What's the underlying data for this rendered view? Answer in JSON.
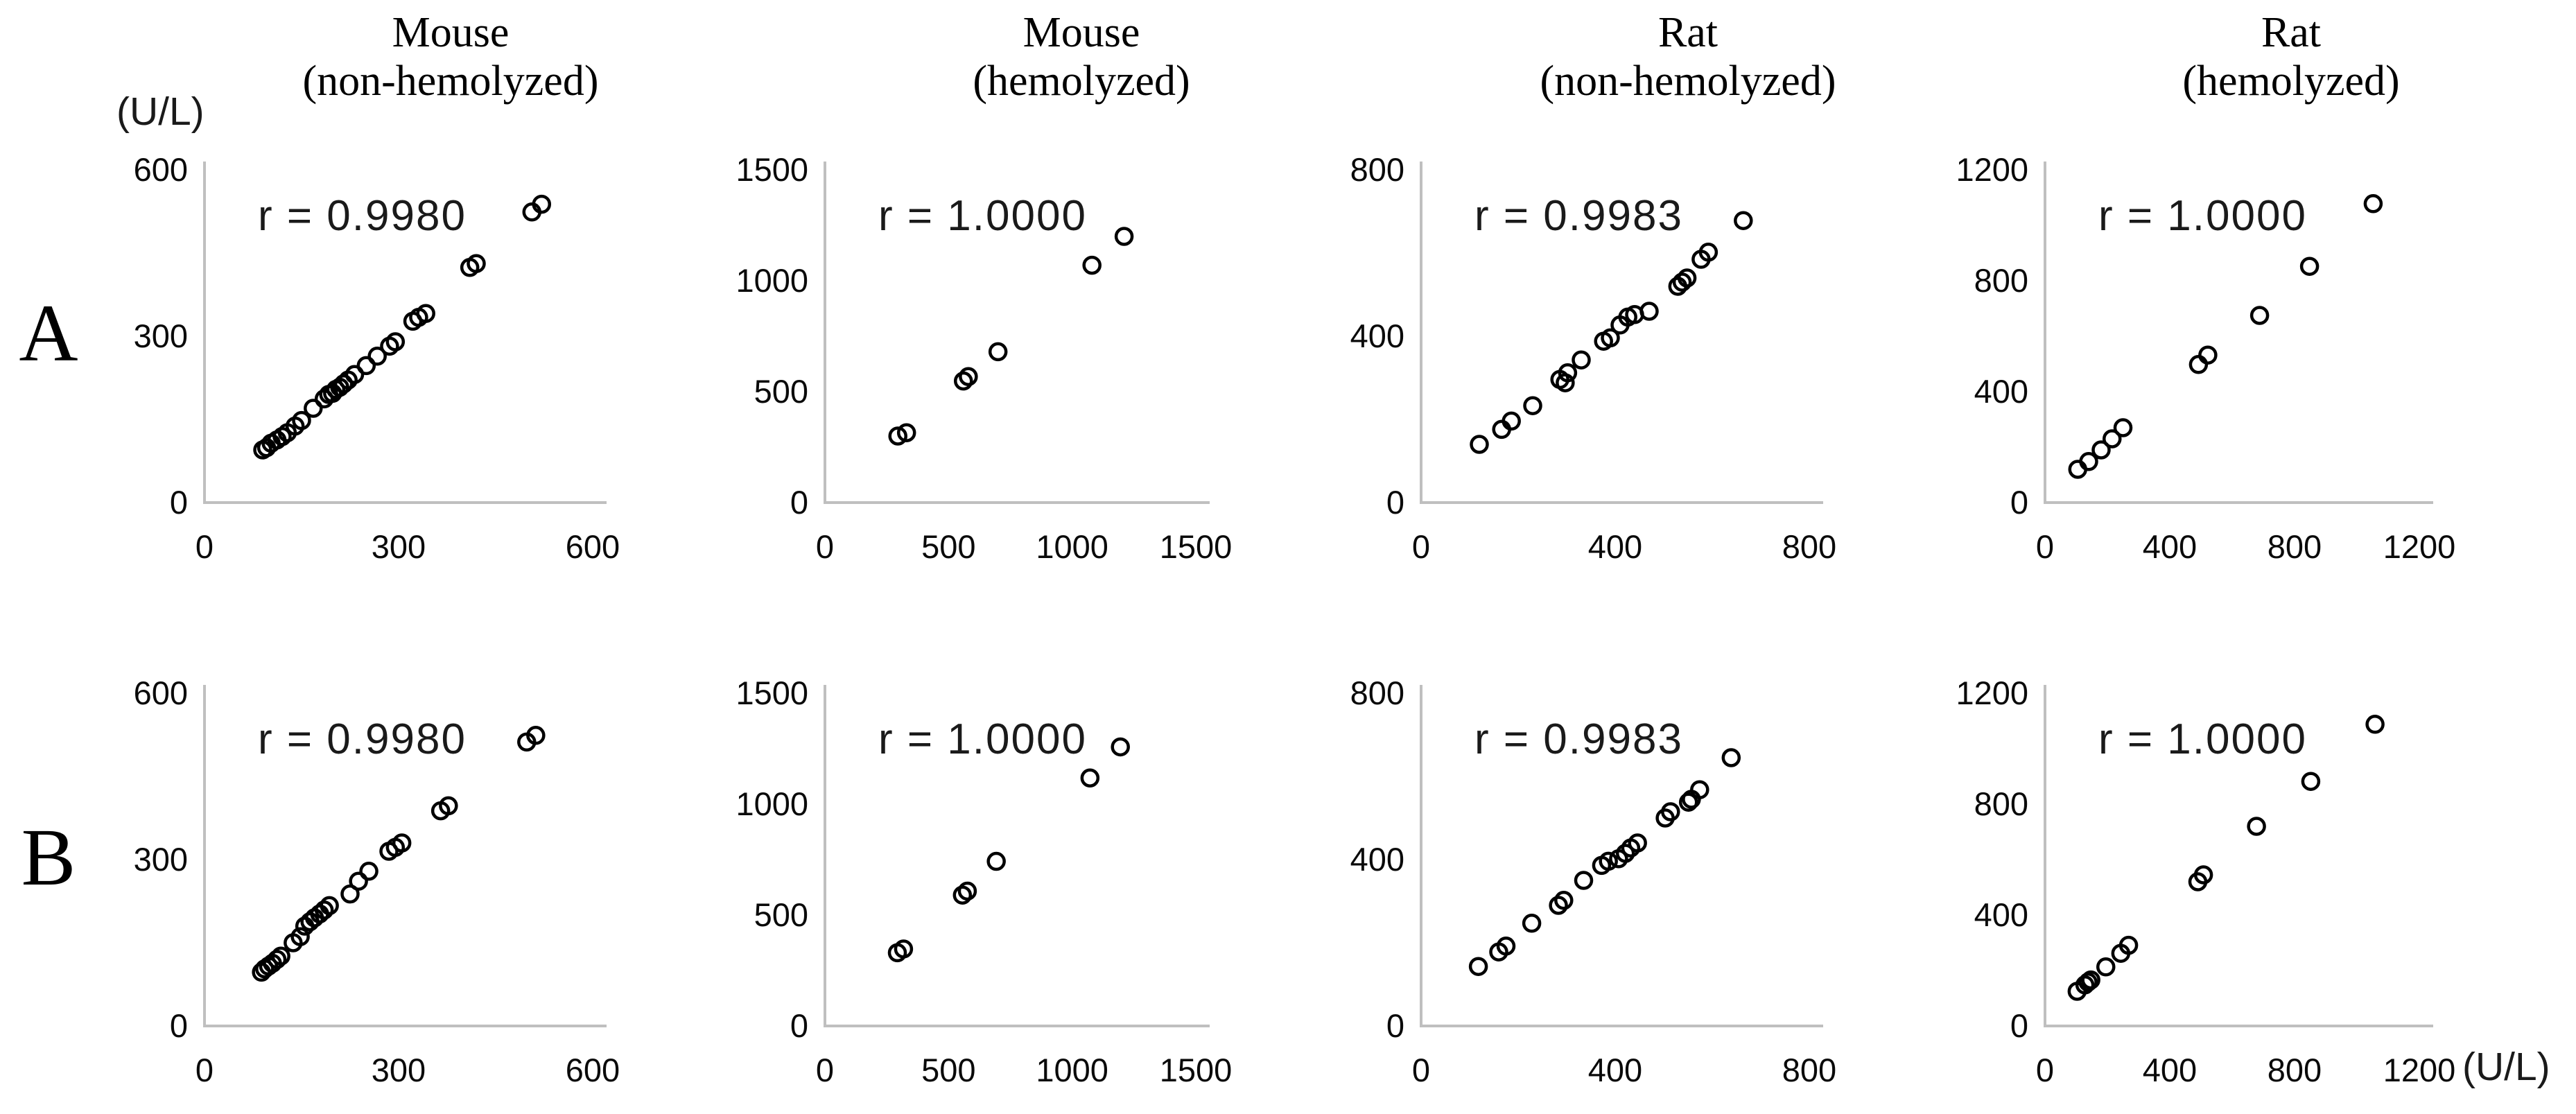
{
  "figure": {
    "row_labels": [
      "A",
      "B"
    ],
    "unit_label_top": "(U/L)",
    "unit_label_bottom": "(U/L)",
    "column_headers": [
      {
        "line1": "Mouse",
        "line2": "(non-hemolyzed)"
      },
      {
        "line1": "Mouse",
        "line2": "(hemolyzed)"
      },
      {
        "line1": "Rat",
        "line2": "(non-hemolyzed)"
      },
      {
        "line1": "Rat",
        "line2": "(hemolyzed)"
      }
    ]
  },
  "colors": {
    "axis": "#bfbfbf",
    "marker": "#000000",
    "text": "#000000",
    "background": "#ffffff"
  },
  "chart_data": [
    {
      "id": "A-mouse-non-hemolyzed",
      "panel": "A",
      "column": "Mouse (non-hemolyzed)",
      "type": "scatter",
      "r_text": "r = 0.9980",
      "r_value": 0.998,
      "xlim": [
        0,
        600
      ],
      "ylim": [
        0,
        600
      ],
      "xticks": [
        0,
        300,
        600
      ],
      "yticks": [
        0,
        300,
        600
      ],
      "grid": false,
      "legend": "none",
      "points": [
        [
          90,
          95
        ],
        [
          96,
          99
        ],
        [
          103,
          107
        ],
        [
          112,
          113
        ],
        [
          120,
          119
        ],
        [
          128,
          126
        ],
        [
          140,
          138
        ],
        [
          150,
          148
        ],
        [
          168,
          170
        ],
        [
          185,
          187
        ],
        [
          192,
          195
        ],
        [
          198,
          197
        ],
        [
          203,
          204
        ],
        [
          209,
          208
        ],
        [
          215,
          214
        ],
        [
          222,
          221
        ],
        [
          232,
          231
        ],
        [
          250,
          247
        ],
        [
          267,
          264
        ],
        [
          286,
          282
        ],
        [
          295,
          290
        ],
        [
          322,
          327
        ],
        [
          331,
          334
        ],
        [
          342,
          341
        ],
        [
          410,
          424
        ],
        [
          420,
          431
        ],
        [
          506,
          524
        ],
        [
          521,
          538
        ]
      ]
    },
    {
      "id": "A-mouse-hemolyzed",
      "panel": "A",
      "column": "Mouse (hemolyzed)",
      "type": "scatter",
      "r_text": "r = 1.0000",
      "r_value": 1.0,
      "xlim": [
        0,
        1500
      ],
      "ylim": [
        0,
        1500
      ],
      "xticks": [
        0,
        500,
        1000,
        1500
      ],
      "yticks": [
        0,
        500,
        1000,
        1500
      ],
      "grid": false,
      "legend": "none",
      "points": [
        [
          295,
          300
        ],
        [
          330,
          315
        ],
        [
          560,
          548
        ],
        [
          580,
          568
        ],
        [
          700,
          680
        ],
        [
          1080,
          1070
        ],
        [
          1210,
          1200
        ]
      ]
    },
    {
      "id": "A-rat-non-hemolyzed",
      "panel": "A",
      "column": "Rat (non-hemolyzed)",
      "type": "scatter",
      "r_text": "r = 0.9983",
      "r_value": 0.9983,
      "xlim": [
        0,
        800
      ],
      "ylim": [
        0,
        800
      ],
      "xticks": [
        0,
        400,
        800
      ],
      "yticks": [
        0,
        400,
        800
      ],
      "grid": false,
      "legend": "none",
      "points": [
        [
          120,
          140
        ],
        [
          166,
          176
        ],
        [
          186,
          196
        ],
        [
          230,
          233
        ],
        [
          286,
          296
        ],
        [
          297,
          288
        ],
        [
          302,
          312
        ],
        [
          330,
          343
        ],
        [
          376,
          388
        ],
        [
          390,
          396
        ],
        [
          410,
          427
        ],
        [
          426,
          446
        ],
        [
          440,
          452
        ],
        [
          470,
          460
        ],
        [
          529,
          520
        ],
        [
          538,
          530
        ],
        [
          548,
          540
        ],
        [
          577,
          585
        ],
        [
          592,
          602
        ],
        [
          664,
          678
        ]
      ]
    },
    {
      "id": "A-rat-hemolyzed",
      "panel": "A",
      "column": "Rat (hemolyzed)",
      "type": "scatter",
      "r_text": "r = 1.0000",
      "r_value": 1.0,
      "xlim": [
        0,
        1200
      ],
      "ylim": [
        0,
        1200
      ],
      "xticks": [
        0,
        400,
        800,
        1200
      ],
      "yticks": [
        0,
        400,
        800,
        1200
      ],
      "grid": false,
      "legend": "none",
      "points": [
        [
          105,
          120
        ],
        [
          140,
          148
        ],
        [
          180,
          190
        ],
        [
          215,
          230
        ],
        [
          250,
          270
        ],
        [
          492,
          498
        ],
        [
          522,
          532
        ],
        [
          688,
          675
        ],
        [
          848,
          852
        ],
        [
          1052,
          1078
        ]
      ]
    },
    {
      "id": "B-mouse-non-hemolyzed",
      "panel": "B",
      "column": "Mouse (non-hemolyzed)",
      "type": "scatter",
      "r_text": "r = 0.9980",
      "r_value": 0.998,
      "xlim": [
        0,
        600
      ],
      "ylim": [
        0,
        600
      ],
      "xticks": [
        0,
        300,
        600
      ],
      "yticks": [
        0,
        300,
        600
      ],
      "grid": false,
      "legend": "none",
      "points": [
        [
          88,
          97
        ],
        [
          93,
          103
        ],
        [
          99,
          108
        ],
        [
          105,
          113
        ],
        [
          112,
          120
        ],
        [
          118,
          126
        ],
        [
          137,
          150
        ],
        [
          148,
          161
        ],
        [
          155,
          180
        ],
        [
          163,
          188
        ],
        [
          170,
          195
        ],
        [
          178,
          202
        ],
        [
          185,
          209
        ],
        [
          193,
          217
        ],
        [
          225,
          238
        ],
        [
          238,
          261
        ],
        [
          254,
          279
        ],
        [
          285,
          315
        ],
        [
          295,
          322
        ],
        [
          305,
          330
        ],
        [
          365,
          388
        ],
        [
          377,
          397
        ],
        [
          498,
          512
        ],
        [
          512,
          524
        ]
      ]
    },
    {
      "id": "B-mouse-hemolyzed",
      "panel": "B",
      "column": "Mouse (hemolyzed)",
      "type": "scatter",
      "r_text": "r = 1.0000",
      "r_value": 1.0,
      "xlim": [
        0,
        1500
      ],
      "ylim": [
        0,
        1500
      ],
      "xticks": [
        0,
        500,
        1000,
        1500
      ],
      "yticks": [
        0,
        500,
        1000,
        1500
      ],
      "grid": false,
      "legend": "none",
      "points": [
        [
          293,
          330
        ],
        [
          318,
          347
        ],
        [
          556,
          590
        ],
        [
          576,
          608
        ],
        [
          693,
          742
        ],
        [
          1072,
          1118
        ],
        [
          1195,
          1258
        ]
      ]
    },
    {
      "id": "B-rat-non-hemolyzed",
      "panel": "B",
      "column": "Rat (non-hemolyzed)",
      "type": "scatter",
      "r_text": "r = 0.9983",
      "r_value": 0.9983,
      "xlim": [
        0,
        800
      ],
      "ylim": [
        0,
        800
      ],
      "xticks": [
        0,
        400,
        800
      ],
      "yticks": [
        0,
        400,
        800
      ],
      "grid": false,
      "legend": "none",
      "points": [
        [
          118,
          143
        ],
        [
          160,
          178
        ],
        [
          175,
          192
        ],
        [
          228,
          247
        ],
        [
          283,
          290
        ],
        [
          294,
          302
        ],
        [
          335,
          350
        ],
        [
          372,
          386
        ],
        [
          386,
          396
        ],
        [
          407,
          402
        ],
        [
          421,
          415
        ],
        [
          432,
          428
        ],
        [
          446,
          440
        ],
        [
          503,
          500
        ],
        [
          514,
          515
        ],
        [
          551,
          538
        ],
        [
          557,
          545
        ],
        [
          574,
          568
        ],
        [
          639,
          645
        ]
      ]
    },
    {
      "id": "B-rat-hemolyzed",
      "panel": "B",
      "column": "Rat (hemolyzed)",
      "type": "scatter",
      "r_text": "r = 1.0000",
      "r_value": 1.0,
      "xlim": [
        0,
        1200
      ],
      "ylim": [
        0,
        1200
      ],
      "xticks": [
        0,
        400,
        800,
        1200
      ],
      "yticks": [
        0,
        400,
        800,
        1200
      ],
      "grid": false,
      "legend": "none",
      "points": [
        [
          103,
          125
        ],
        [
          128,
          148
        ],
        [
          138,
          158
        ],
        [
          147,
          166
        ],
        [
          195,
          213
        ],
        [
          243,
          262
        ],
        [
          268,
          291
        ],
        [
          490,
          520
        ],
        [
          508,
          545
        ],
        [
          678,
          720
        ],
        [
          852,
          882
        ],
        [
          1058,
          1088
        ]
      ]
    }
  ]
}
